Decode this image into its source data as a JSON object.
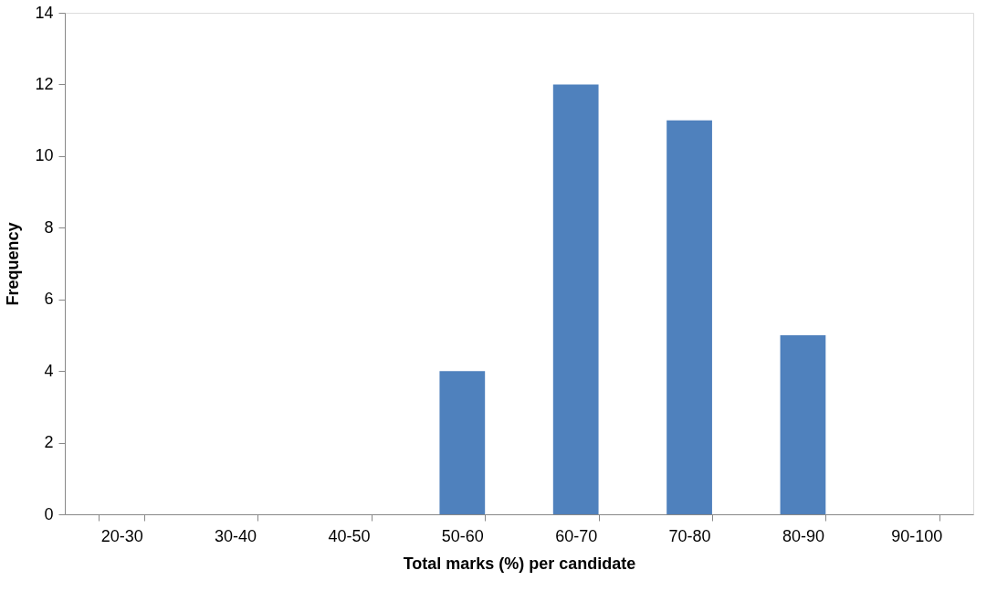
{
  "chart_data": {
    "type": "bar",
    "xlabel": "Total marks (%) per candidate",
    "ylabel": "Frequency",
    "categories": [
      "20-30",
      "30-40",
      "40-50",
      "50-60",
      "60-70",
      "70-80",
      "80-90",
      "90-100"
    ],
    "values": [
      0,
      0,
      0,
      4,
      12,
      11,
      5,
      0
    ],
    "color": "#4f81bd",
    "ylim": [
      0,
      14
    ],
    "yticks": [
      0,
      2,
      4,
      6,
      8,
      10,
      12,
      14
    ],
    "grid": false
  }
}
